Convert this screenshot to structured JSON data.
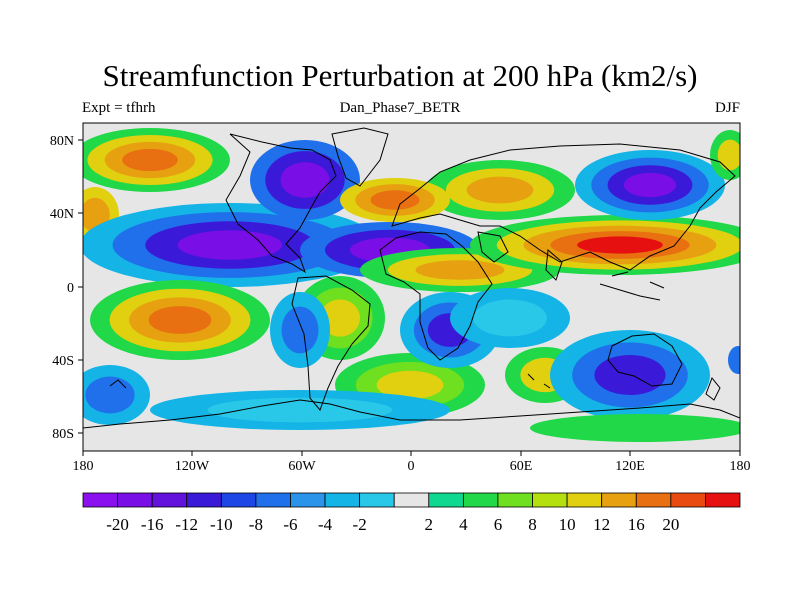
{
  "map": {
    "title": "Streamfunction Perturbation at 200 hPa (km2/s)",
    "left_label": "Expt = tfhrh",
    "center_label": "Dan_Phase7_BETR",
    "right_label": "DJF",
    "lat_ticks": [
      "80N",
      "40N",
      "0",
      "40S",
      "80S"
    ],
    "lon_ticks": [
      "180",
      "120W",
      "60W",
      "0",
      "60E",
      "120E",
      "180"
    ],
    "background_color": "#e6e6e6",
    "coastline_color": "#000000"
  },
  "colorbar": {
    "colors": [
      "#8a10f0",
      "#7a0ee6",
      "#6212dc",
      "#3a1ad8",
      "#1e46e6",
      "#1f70ea",
      "#2a94ea",
      "#14b4e6",
      "#2ac8e8",
      "#e6e6e6",
      "#10d890",
      "#20d848",
      "#6ee020",
      "#b4e010",
      "#e0d010",
      "#e6a010",
      "#e87010",
      "#e84a10",
      "#e61010"
    ],
    "labels": [
      "-20",
      "-16",
      "-12",
      "-10",
      "-8",
      "-6",
      "-4",
      "-2",
      "2",
      "4",
      "6",
      "8",
      "10",
      "12",
      "16",
      "20"
    ]
  }
}
